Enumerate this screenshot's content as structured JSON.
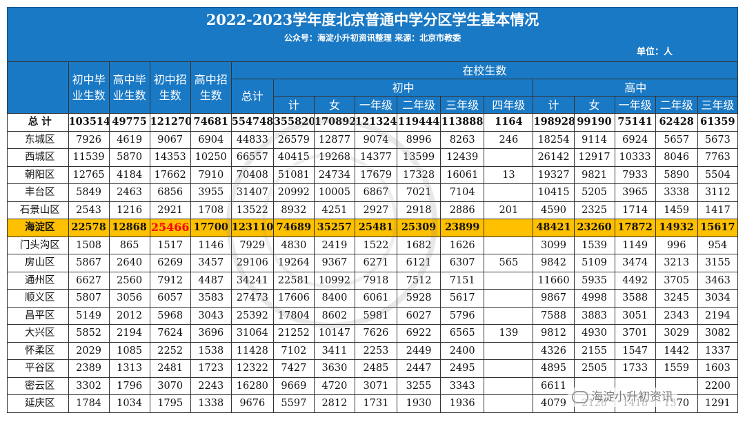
{
  "header": {
    "title": "2022-2023学年度北京普通中学分区学生基本情况",
    "subtitle": "公众号：海淀小升初资讯整理 来源：北京市教委",
    "unit": "单位：人"
  },
  "columns": {
    "jh_grad": "初中毕业生数",
    "sh_grad": "高中毕业生数",
    "jh_enroll": "初中招生数",
    "sh_enroll": "高中招生数",
    "in_school": "在校生数",
    "total": "总计",
    "junior": "初中",
    "senior": "高中",
    "sub": [
      "计",
      "女",
      "一年级",
      "二年级",
      "三年级",
      "四年级",
      "计",
      "女",
      "一年级",
      "二年级",
      "三年级"
    ]
  },
  "rows": [
    {
      "name": "总  计",
      "v": [
        "103514",
        "49775",
        "121270",
        "74681",
        "554748",
        "355820",
        "170892",
        "121324",
        "119444",
        "113888",
        "1164",
        "198928",
        "99190",
        "75141",
        "62428",
        "61359"
      ]
    },
    {
      "name": "东城区",
      "v": [
        "7926",
        "4619",
        "9067",
        "6904",
        "44833",
        "26579",
        "12877",
        "9074",
        "8996",
        "8263",
        "246",
        "18254",
        "9114",
        "6924",
        "5657",
        "5673"
      ]
    },
    {
      "name": "西城区",
      "v": [
        "11539",
        "5870",
        "14353",
        "10250",
        "66557",
        "40415",
        "19268",
        "14377",
        "13599",
        "12439",
        "",
        "26142",
        "12917",
        "10333",
        "8046",
        "7763"
      ]
    },
    {
      "name": "朝阳区",
      "v": [
        "12765",
        "4184",
        "17662",
        "7910",
        "70408",
        "51081",
        "24734",
        "17679",
        "17328",
        "16061",
        "13",
        "19327",
        "9821",
        "7933",
        "5890",
        "5504"
      ]
    },
    {
      "name": "丰台区",
      "v": [
        "5849",
        "2463",
        "6856",
        "3955",
        "31407",
        "20992",
        "10005",
        "6867",
        "7021",
        "7104",
        "",
        "10415",
        "5205",
        "3965",
        "3338",
        "3112"
      ]
    },
    {
      "name": "石景山区",
      "v": [
        "2543",
        "1216",
        "2921",
        "1708",
        "13522",
        "8932",
        "4251",
        "2927",
        "2918",
        "2886",
        "201",
        "4590",
        "2325",
        "1714",
        "1459",
        "1417"
      ]
    },
    {
      "name": "海淀区",
      "v": [
        "22578",
        "12868",
        "25466",
        "17700",
        "123110",
        "74689",
        "35257",
        "25481",
        "25309",
        "23899",
        "",
        "48421",
        "23260",
        "17872",
        "14932",
        "15617"
      ]
    },
    {
      "name": "门头沟区",
      "v": [
        "1508",
        "865",
        "1517",
        "1146",
        "7929",
        "4830",
        "2419",
        "1522",
        "1682",
        "1626",
        "",
        "3099",
        "1539",
        "1149",
        "996",
        "954"
      ]
    },
    {
      "name": "房山区",
      "v": [
        "5867",
        "2640",
        "6269",
        "3457",
        "29106",
        "19264",
        "9367",
        "6271",
        "6121",
        "6307",
        "565",
        "9842",
        "5109",
        "3474",
        "3213",
        "3155"
      ]
    },
    {
      "name": "通州区",
      "v": [
        "6627",
        "2560",
        "7912",
        "4487",
        "34241",
        "22581",
        "10992",
        "7918",
        "7512",
        "7151",
        "",
        "11660",
        "5935",
        "4492",
        "3705",
        "3463"
      ]
    },
    {
      "name": "顺义区",
      "v": [
        "5807",
        "3056",
        "6057",
        "3583",
        "27473",
        "17606",
        "8400",
        "6061",
        "5928",
        "5617",
        "",
        "9867",
        "4998",
        "3588",
        "3245",
        "3034"
      ]
    },
    {
      "name": "昌平区",
      "v": [
        "5149",
        "2012",
        "5968",
        "3043",
        "25392",
        "17804",
        "8602",
        "5981",
        "6027",
        "5796",
        "",
        "7588",
        "3883",
        "3051",
        "2343",
        "2194"
      ]
    },
    {
      "name": "大兴区",
      "v": [
        "5852",
        "2194",
        "7624",
        "3696",
        "31064",
        "21252",
        "10147",
        "7626",
        "6922",
        "6565",
        "139",
        "9812",
        "4930",
        "3701",
        "3029",
        "3082"
      ]
    },
    {
      "name": "怀柔区",
      "v": [
        "2029",
        "1085",
        "2252",
        "1538",
        "11428",
        "7102",
        "3411",
        "2253",
        "2449",
        "2400",
        "",
        "4326",
        "2155",
        "1547",
        "1442",
        "1337"
      ]
    },
    {
      "name": "平谷区",
      "v": [
        "2389",
        "1313",
        "2481",
        "1723",
        "12322",
        "7427",
        "3630",
        "2485",
        "2447",
        "2495",
        "",
        "4895",
        "2505",
        "1733",
        "1559",
        "1603"
      ]
    },
    {
      "name": "密云区",
      "v": [
        "3302",
        "1796",
        "3070",
        "2243",
        "16280",
        "9669",
        "4720",
        "3071",
        "3255",
        "3343",
        "",
        "6611",
        "",
        "",
        "",
        "2200"
      ]
    },
    {
      "name": "延庆区",
      "v": [
        "1784",
        "1034",
        "1795",
        "1338",
        "9676",
        "5597",
        "2812",
        "1731",
        "1930",
        "1936",
        "",
        "4079",
        "2128",
        "1418",
        "1370",
        "1291"
      ]
    }
  ],
  "watermark": {
    "text": "海淀小升初资讯"
  },
  "colors": {
    "header_blue": "#1a79c5",
    "highlight": "#ffc000",
    "emphasis_red": "#ff0000"
  }
}
